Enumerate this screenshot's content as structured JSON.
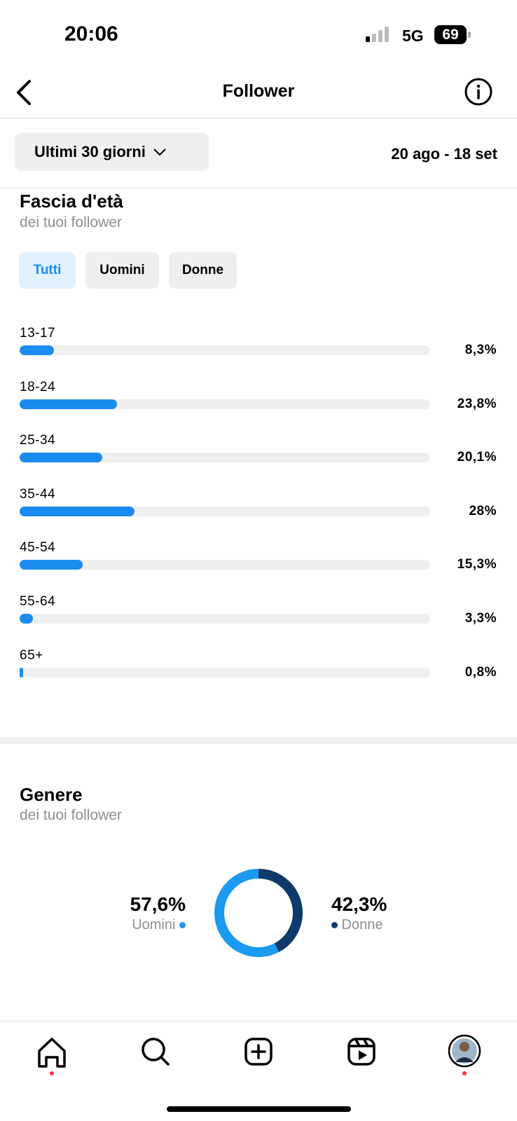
{
  "status_bar": {
    "time": "20:06",
    "network": "5G",
    "battery": "69"
  },
  "header": {
    "title": "Follower"
  },
  "filter": {
    "period": "Ultimi 30 giorni",
    "date_range": "20 ago - 18 set"
  },
  "age": {
    "title": "Fascia d'età",
    "subtitle": "dei tuoi follower",
    "tabs": [
      "Tutti",
      "Uomini",
      "Donne"
    ],
    "categories": [
      "13-17",
      "18-24",
      "25-34",
      "35-44",
      "45-54",
      "55-64",
      "65+"
    ],
    "values": [
      8.3,
      23.8,
      20.1,
      28,
      15.3,
      3.3,
      0.8
    ],
    "value_labels": [
      "8,3%",
      "23,8%",
      "20,1%",
      "28%",
      "15,3%",
      "3,3%",
      "0,8%"
    ],
    "xlim": [
      0,
      100
    ],
    "color": "#1a8cf0"
  },
  "gender": {
    "title": "Genere",
    "subtitle": "dei tuoi follower",
    "series": [
      {
        "name": "Uomini",
        "color": "#1a9af0",
        "value": 57.6,
        "value_label": "57,6%"
      },
      {
        "name": "Donne",
        "color": "#0d3a6b",
        "value": 42.3,
        "value_label": "42,3%"
      }
    ]
  }
}
